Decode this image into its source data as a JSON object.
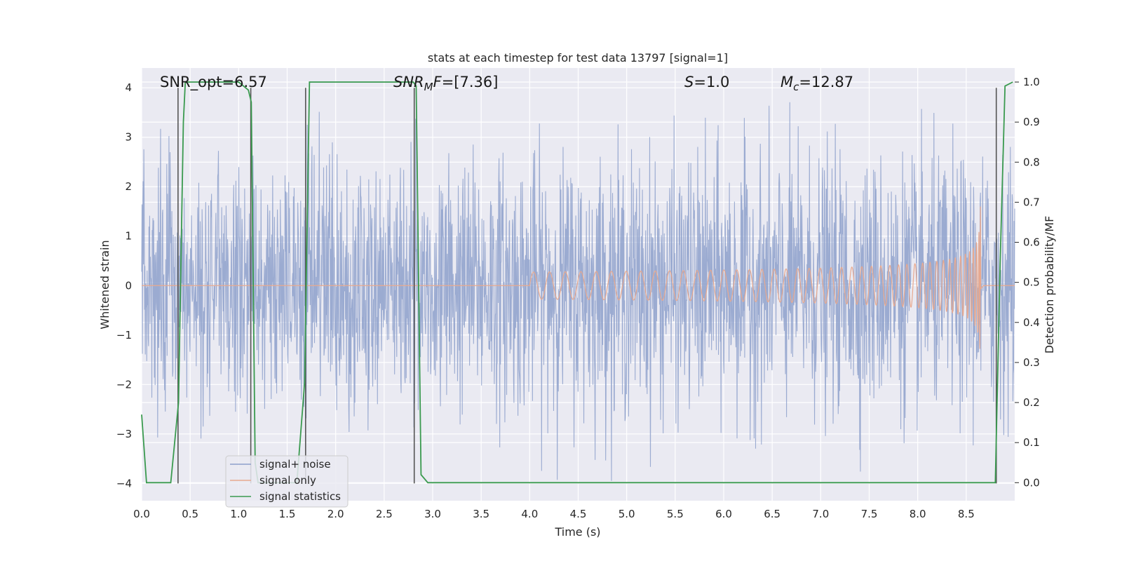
{
  "chart_data": {
    "type": "line",
    "title": "stats at each timestep for test data 13797 [signal=1]",
    "xlabel": "Time (s)",
    "ylabel": "Whitened strain",
    "y2label": "Detection probability/MF",
    "xlim": [
      0,
      9.0
    ],
    "ylim": [
      -4.35,
      4.4
    ],
    "y2lim": [
      -0.045,
      1.035
    ],
    "xticks": [
      "0.0",
      "0.5",
      "1.0",
      "1.5",
      "2.0",
      "2.5",
      "3.0",
      "3.5",
      "4.0",
      "4.5",
      "5.0",
      "5.5",
      "6.0",
      "6.5",
      "7.0",
      "7.5",
      "8.0",
      "8.5"
    ],
    "yticks": [
      "−4",
      "−3",
      "−2",
      "−1",
      "0",
      "1",
      "2",
      "3",
      "4"
    ],
    "y2ticks": [
      "0.0",
      "0.1",
      "0.2",
      "0.3",
      "0.4",
      "0.5",
      "0.6",
      "0.7",
      "0.8",
      "0.9",
      "1.0"
    ],
    "grid": true,
    "legend_position": "lower-left",
    "annotations": {
      "snr_opt": "SNR_opt=6.57",
      "snr_mf_base": "SNR",
      "snr_mf_sub": "M",
      "snr_mf_rest": "F=[7.36]",
      "s_base": "S",
      "s_rest": "=1.0",
      "mc_base": "M",
      "mc_sub": "c",
      "mc_rest": "=12.87"
    },
    "series": [
      {
        "name": "signal+ noise",
        "color": "#8da0cb",
        "axis": "left",
        "description_values": "whitened strain noise, amplitude roughly ±2.5 with peaks to ±4"
      },
      {
        "name": "signal only",
        "color": "#e8a98f",
        "axis": "left",
        "chirp": {
          "start": 4.0,
          "end": 8.65,
          "peak_amplitude": 1.6
        }
      },
      {
        "name": "signal statistics",
        "color": "#3a9a4f",
        "axis": "right",
        "x": [
          0.0,
          0.05,
          0.3,
          0.38,
          0.43,
          0.45,
          1.0,
          1.1,
          1.13,
          1.17,
          1.2,
          1.6,
          1.68,
          1.73,
          2.8,
          2.83,
          2.88,
          2.95,
          8.8,
          8.85,
          8.9,
          8.98
        ],
        "y": [
          0.17,
          0.0,
          0.0,
          0.2,
          0.9,
          1.0,
          1.0,
          0.98,
          0.95,
          0.05,
          0.0,
          0.0,
          0.25,
          1.0,
          1.0,
          0.99,
          0.02,
          0.0,
          0.0,
          0.55,
          0.99,
          1.0
        ]
      }
    ],
    "vertical_markers": [
      0.375,
      1.125,
      1.69,
      2.81,
      8.81
    ]
  }
}
